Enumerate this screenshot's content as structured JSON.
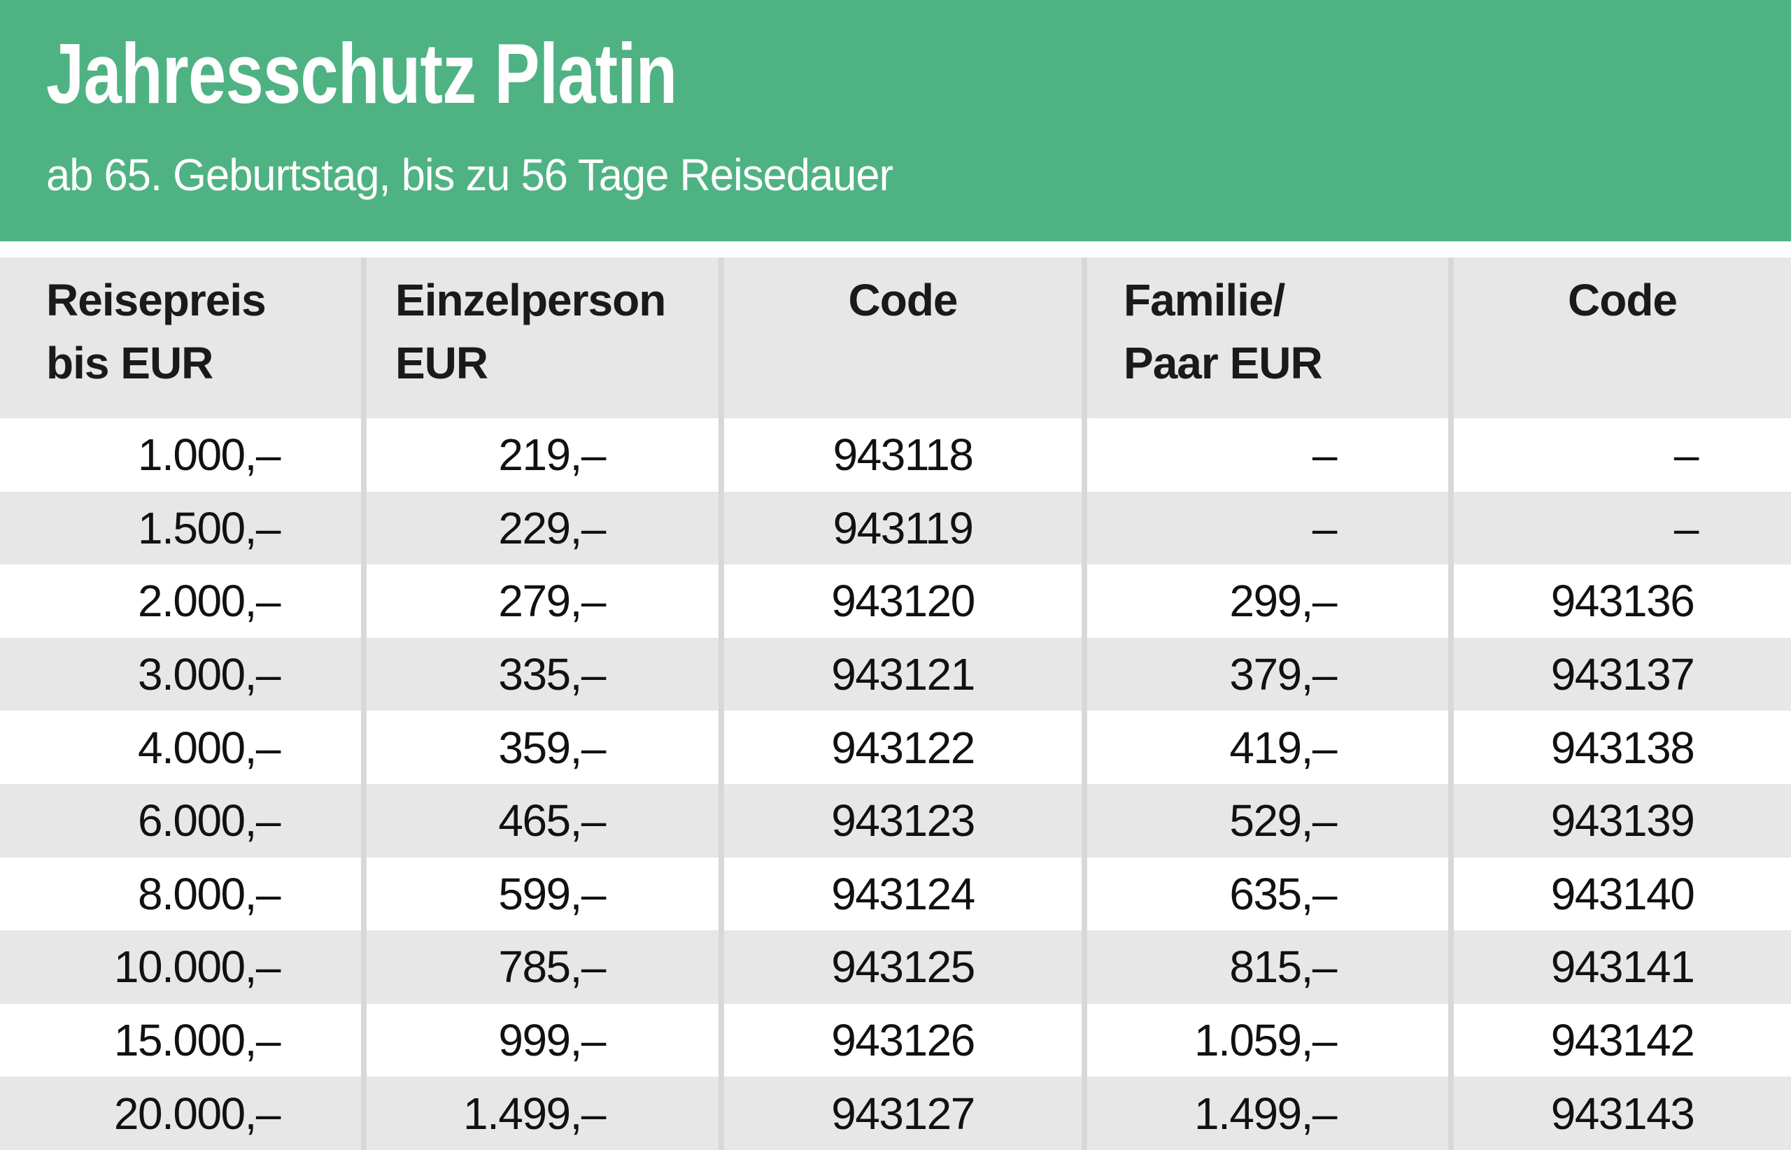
{
  "header": {
    "title": "Jahresschutz Platin",
    "subtitle": "ab 65. Geburtstag, bis zu 56 Tage Reisedauer",
    "background_color": "#4FB283",
    "text_color": "#FFFFFF"
  },
  "table": {
    "columns": [
      {
        "lines": [
          "Reisepreis",
          "bis EUR"
        ]
      },
      {
        "lines": [
          "Einzelperson",
          "EUR"
        ]
      },
      {
        "lines": [
          "Code"
        ]
      },
      {
        "lines": [
          "Familie/",
          "Paar EUR"
        ]
      },
      {
        "lines": [
          "Code"
        ]
      }
    ],
    "rows": [
      [
        "1.000,–",
        "219,–",
        "943118",
        "–",
        "–"
      ],
      [
        "1.500,–",
        "229,–",
        "943119",
        "–",
        "–"
      ],
      [
        "2.000,–",
        "279,–",
        "943120",
        "299,–",
        "943136"
      ],
      [
        "3.000,–",
        "335,–",
        "943121",
        "379,–",
        "943137"
      ],
      [
        "4.000,–",
        "359,–",
        "943122",
        "419,–",
        "943138"
      ],
      [
        "6.000,–",
        "465,–",
        "943123",
        "529,–",
        "943139"
      ],
      [
        "8.000,–",
        "599,–",
        "943124",
        "635,–",
        "943140"
      ],
      [
        "10.000,–",
        "785,–",
        "943125",
        "815,–",
        "943141"
      ],
      [
        "15.000,–",
        "999,–",
        "943126",
        "1.059,–",
        "943142"
      ],
      [
        "20.000,–",
        "1.499,–",
        "943127",
        "1.499,–",
        "943143"
      ]
    ],
    "empty_value": "–",
    "stripe_color": "#E7E7E7",
    "separator_color": "#D8D8D8"
  }
}
